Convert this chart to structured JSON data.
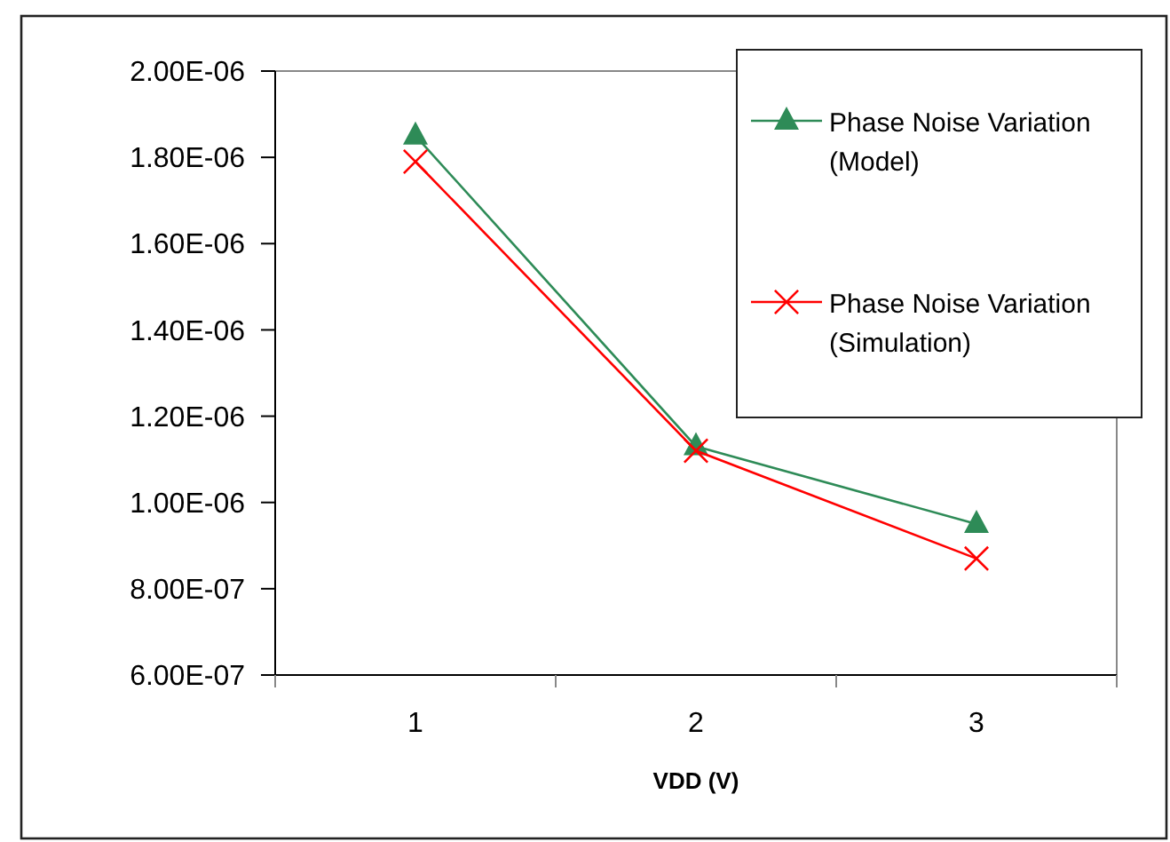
{
  "chart_data": {
    "type": "line",
    "xlabel": "VDD (V)",
    "categories": [
      "1",
      "2",
      "3"
    ],
    "series": [
      {
        "name": "Phase Noise Variation (Model)",
        "color": "#2e8b57",
        "marker": "triangle",
        "values": [
          1.85e-06,
          1.13e-06,
          9.5e-07
        ]
      },
      {
        "name": "Phase Noise Variation (Simulation)",
        "color": "#ff0000",
        "marker": "cross",
        "values": [
          1.79e-06,
          1.12e-06,
          8.7e-07
        ]
      }
    ],
    "ylim": [
      6e-07,
      2e-06
    ],
    "yticks": [
      {
        "value": 6e-07,
        "label": "6.00E-07"
      },
      {
        "value": 8e-07,
        "label": "8.00E-07"
      },
      {
        "value": 1e-06,
        "label": "1.00E-06"
      },
      {
        "value": 1.2e-06,
        "label": "1.20E-06"
      },
      {
        "value": 1.4e-06,
        "label": "1.40E-06"
      },
      {
        "value": 1.6e-06,
        "label": "1.60E-06"
      },
      {
        "value": 1.8e-06,
        "label": "1.80E-06"
      },
      {
        "value": 2e-06,
        "label": "2.00E-06"
      }
    ],
    "grid": false,
    "legend": "top right"
  }
}
